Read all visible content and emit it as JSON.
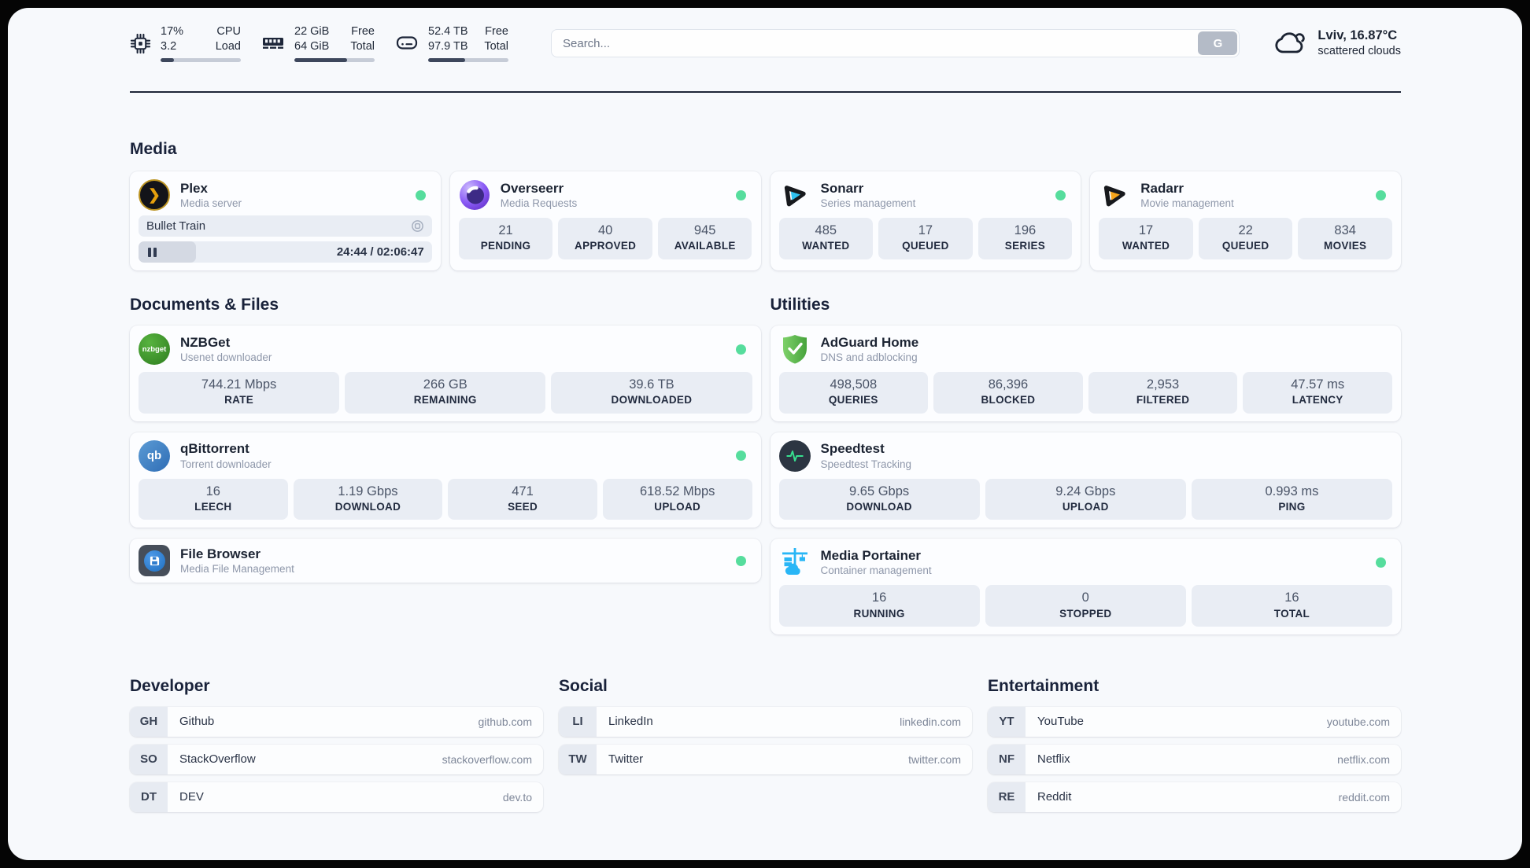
{
  "header": {
    "metrics": {
      "cpu": {
        "value1": "17%",
        "value2": "3.2",
        "label1": "CPU",
        "label2": "Load",
        "progress": 17
      },
      "ram": {
        "value1": "22 GiB",
        "value2": "64 GiB",
        "label1": "Free",
        "label2": "Total",
        "progress": 66
      },
      "disk": {
        "value1": "52.4 TB",
        "value2": "97.9 TB",
        "label1": "Free",
        "label2": "Total",
        "progress": 46
      }
    },
    "search": {
      "placeholder": "Search...",
      "button_label": "G"
    },
    "weather": {
      "location": "Lviv, 16.87°C",
      "condition": "scattered clouds"
    }
  },
  "colors": {
    "status_online": "#56dd9d"
  },
  "sections": {
    "media": {
      "title": "Media",
      "plex": {
        "name": "Plex",
        "subtitle": "Media server",
        "now_playing": "Bullet Train",
        "time": "24:44 / 02:06:47",
        "progress": 19.5
      },
      "overseerr": {
        "name": "Overseerr",
        "subtitle": "Media Requests",
        "stats": [
          {
            "value": "21",
            "label": "PENDING"
          },
          {
            "value": "40",
            "label": "APPROVED"
          },
          {
            "value": "945",
            "label": "AVAILABLE"
          }
        ]
      },
      "sonarr": {
        "name": "Sonarr",
        "subtitle": "Series management",
        "stats": [
          {
            "value": "485",
            "label": "WANTED"
          },
          {
            "value": "17",
            "label": "QUEUED"
          },
          {
            "value": "196",
            "label": "SERIES"
          }
        ]
      },
      "radarr": {
        "name": "Radarr",
        "subtitle": "Movie management",
        "stats": [
          {
            "value": "17",
            "label": "WANTED"
          },
          {
            "value": "22",
            "label": "QUEUED"
          },
          {
            "value": "834",
            "label": "MOVIES"
          }
        ]
      }
    },
    "documents": {
      "title": "Documents & Files",
      "nzbget": {
        "name": "NZBGet",
        "subtitle": "Usenet downloader",
        "icon_text": "nzbget",
        "stats": [
          {
            "value": "744.21 Mbps",
            "label": "RATE"
          },
          {
            "value": "266 GB",
            "label": "REMAINING"
          },
          {
            "value": "39.6 TB",
            "label": "DOWNLOADED"
          }
        ]
      },
      "qbittorrent": {
        "name": "qBittorrent",
        "subtitle": "Torrent downloader",
        "icon_text": "qb",
        "stats": [
          {
            "value": "16",
            "label": "LEECH"
          },
          {
            "value": "1.19 Gbps",
            "label": "DOWNLOAD"
          },
          {
            "value": "471",
            "label": "SEED"
          },
          {
            "value": "618.52 Mbps",
            "label": "UPLOAD"
          }
        ]
      },
      "filebrowser": {
        "name": "File Browser",
        "subtitle": "Media File Management"
      }
    },
    "utilities": {
      "title": "Utilities",
      "adguard": {
        "name": "AdGuard Home",
        "subtitle": "DNS and adblocking",
        "stats": [
          {
            "value": "498,508",
            "label": "QUERIES"
          },
          {
            "value": "86,396",
            "label": "BLOCKED"
          },
          {
            "value": "2,953",
            "label": "FILTERED"
          },
          {
            "value": "47.57 ms",
            "label": "LATENCY"
          }
        ]
      },
      "speedtest": {
        "name": "Speedtest",
        "subtitle": "Speedtest Tracking",
        "stats": [
          {
            "value": "9.65 Gbps",
            "label": "DOWNLOAD"
          },
          {
            "value": "9.24 Gbps",
            "label": "UPLOAD"
          },
          {
            "value": "0.993 ms",
            "label": "PING"
          }
        ]
      },
      "portainer": {
        "name": "Media Portainer",
        "subtitle": "Container management",
        "stats": [
          {
            "value": "16",
            "label": "RUNNING"
          },
          {
            "value": "0",
            "label": "STOPPED"
          },
          {
            "value": "16",
            "label": "TOTAL"
          }
        ]
      }
    },
    "developer": {
      "title": "Developer",
      "links": [
        {
          "tag": "GH",
          "name": "Github",
          "url": "github.com"
        },
        {
          "tag": "SO",
          "name": "StackOverflow",
          "url": "stackoverflow.com"
        },
        {
          "tag": "DT",
          "name": "DEV",
          "url": "dev.to"
        }
      ]
    },
    "social": {
      "title": "Social",
      "links": [
        {
          "tag": "LI",
          "name": "LinkedIn",
          "url": "linkedin.com"
        },
        {
          "tag": "TW",
          "name": "Twitter",
          "url": "twitter.com"
        }
      ]
    },
    "entertainment": {
      "title": "Entertainment",
      "links": [
        {
          "tag": "YT",
          "name": "YouTube",
          "url": "youtube.com"
        },
        {
          "tag": "NF",
          "name": "Netflix",
          "url": "netflix.com"
        },
        {
          "tag": "RE",
          "name": "Reddit",
          "url": "reddit.com"
        }
      ]
    }
  }
}
